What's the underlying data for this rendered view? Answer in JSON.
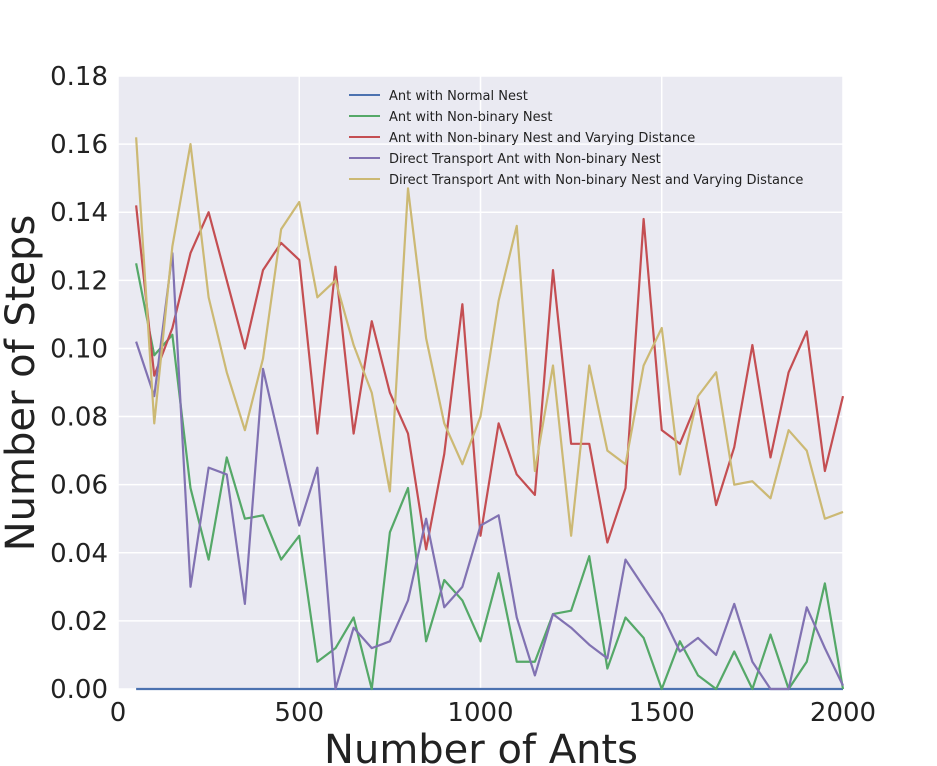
{
  "chart_data": {
    "type": "line",
    "xlabel": "Number of Ants",
    "ylabel": "Number of Steps",
    "xlim": [
      0,
      2000
    ],
    "ylim": [
      0,
      0.18
    ],
    "x_ticks": [
      0,
      500,
      1000,
      1500,
      2000
    ],
    "y_ticks": [
      0.0,
      0.02,
      0.04,
      0.06,
      0.08,
      0.1,
      0.12,
      0.14,
      0.16,
      0.18
    ],
    "grid": true,
    "legend_position": "top-right",
    "x": [
      50,
      100,
      150,
      200,
      250,
      300,
      350,
      400,
      450,
      500,
      550,
      600,
      650,
      700,
      750,
      800,
      850,
      900,
      950,
      1000,
      1050,
      1100,
      1150,
      1200,
      1250,
      1300,
      1350,
      1400,
      1450,
      1500,
      1550,
      1600,
      1650,
      1700,
      1750,
      1800,
      1850,
      1900,
      1950,
      2000
    ],
    "series": [
      {
        "name": "Ant with Normal Nest",
        "color": "#4c72b0",
        "values": [
          0,
          0,
          0,
          0,
          0,
          0,
          0,
          0,
          0,
          0,
          0,
          0,
          0,
          0,
          0,
          0,
          0,
          0,
          0,
          0,
          0,
          0,
          0,
          0,
          0,
          0,
          0,
          0,
          0,
          0,
          0,
          0,
          0,
          0,
          0,
          0,
          0,
          0,
          0,
          0
        ]
      },
      {
        "name": "Ant with Non-binary Nest",
        "color": "#55a868",
        "values": [
          0.125,
          0.098,
          0.104,
          0.059,
          0.038,
          0.068,
          0.05,
          0.051,
          0.038,
          0.045,
          0.008,
          0.012,
          0.021,
          0.0,
          0.046,
          0.059,
          0.014,
          0.032,
          0.026,
          0.014,
          0.034,
          0.008,
          0.008,
          0.022,
          0.023,
          0.039,
          0.006,
          0.021,
          0.015,
          0.0,
          0.014,
          0.004,
          0.0,
          0.011,
          0.0,
          0.016,
          0.0,
          0.008,
          0.031,
          0.0
        ]
      },
      {
        "name": "Ant with Non-binary Nest and Varying Distance",
        "color": "#c44e52",
        "values": [
          0.142,
          0.092,
          0.106,
          0.128,
          0.14,
          0.12,
          0.1,
          0.123,
          0.131,
          0.126,
          0.075,
          0.124,
          0.075,
          0.108,
          0.087,
          0.075,
          0.041,
          0.069,
          0.113,
          0.045,
          0.078,
          0.063,
          0.057,
          0.123,
          0.072,
          0.072,
          0.043,
          0.059,
          0.138,
          0.076,
          0.072,
          0.085,
          0.054,
          0.071,
          0.101,
          0.068,
          0.093,
          0.105,
          0.064,
          0.086
        ]
      },
      {
        "name": "Direct Transport Ant with Non-binary Nest",
        "color": "#8172b2",
        "values": [
          0.102,
          0.086,
          0.128,
          0.03,
          0.065,
          0.063,
          0.025,
          0.094,
          0.071,
          0.048,
          0.065,
          0.0,
          0.018,
          0.012,
          0.014,
          0.026,
          0.05,
          0.024,
          0.03,
          0.048,
          0.051,
          0.021,
          0.004,
          0.022,
          0.018,
          0.013,
          0.009,
          0.038,
          0.03,
          0.022,
          0.011,
          0.015,
          0.01,
          0.025,
          0.008,
          0.0,
          0.0,
          0.024,
          0.012,
          0.001
        ]
      },
      {
        "name": "Direct Transport Ant with Non-binary Nest and Varying Distance",
        "color": "#ccb974",
        "values": [
          0.162,
          0.078,
          0.13,
          0.16,
          0.115,
          0.093,
          0.076,
          0.097,
          0.135,
          0.143,
          0.115,
          0.12,
          0.101,
          0.087,
          0.058,
          0.147,
          0.103,
          0.078,
          0.066,
          0.08,
          0.114,
          0.136,
          0.064,
          0.095,
          0.045,
          0.095,
          0.07,
          0.066,
          0.095,
          0.106,
          0.063,
          0.086,
          0.093,
          0.06,
          0.061,
          0.056,
          0.076,
          0.07,
          0.05,
          0.052
        ]
      }
    ]
  }
}
